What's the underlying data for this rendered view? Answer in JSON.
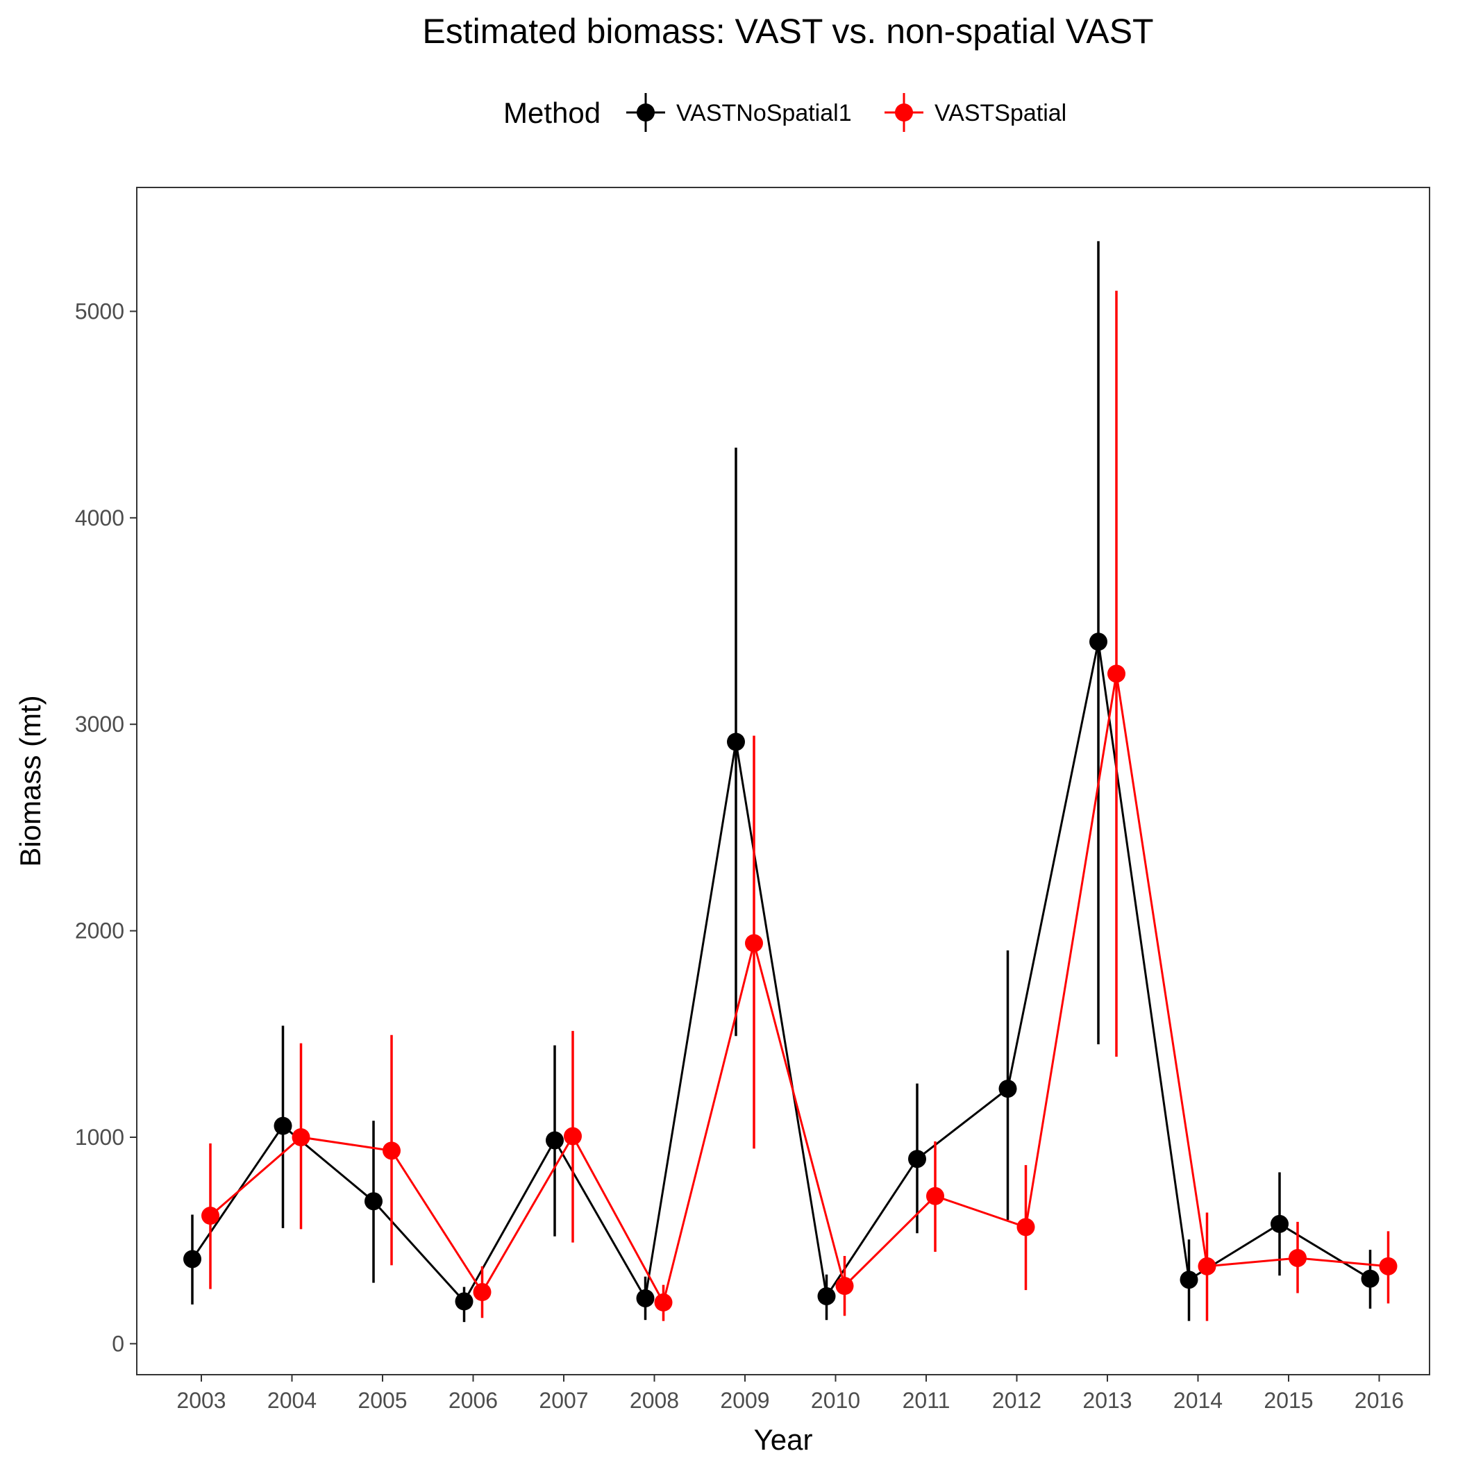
{
  "chart_data": {
    "type": "line",
    "title": "Estimated biomass: VAST vs. non-spatial VAST",
    "xlabel": "Year",
    "ylabel": "Biomass (mt)",
    "legend": {
      "title": "Method",
      "placement": "top"
    },
    "ylim": [
      -150,
      5600
    ],
    "yticks": [
      0,
      1000,
      2000,
      3000,
      4000,
      5000
    ],
    "categories": [
      "2003",
      "2004",
      "2005",
      "2006",
      "2007",
      "2008",
      "2009",
      "2010",
      "2011",
      "2012",
      "2013",
      "2014",
      "2015",
      "2016"
    ],
    "grid": false,
    "series": [
      {
        "name": "VASTNoSpatial1",
        "color": "#000000",
        "values": [
          410,
          1055,
          690,
          205,
          985,
          220,
          2915,
          230,
          895,
          1235,
          3400,
          310,
          580,
          315
        ],
        "lower": [
          190,
          560,
          295,
          105,
          520,
          115,
          1490,
          115,
          535,
          600,
          1450,
          110,
          330,
          170
        ],
        "upper": [
          625,
          1540,
          1080,
          275,
          1445,
          325,
          4340,
          335,
          1260,
          1905,
          5340,
          505,
          830,
          455
        ]
      },
      {
        "name": "VASTSpatial",
        "color": "#ff0000",
        "values": [
          620,
          1000,
          935,
          250,
          1005,
          200,
          1940,
          280,
          715,
          565,
          3245,
          375,
          415,
          375
        ],
        "lower": [
          265,
          555,
          380,
          125,
          490,
          110,
          945,
          135,
          445,
          260,
          1390,
          110,
          245,
          195
        ],
        "upper": [
          970,
          1455,
          1495,
          375,
          1515,
          285,
          2945,
          425,
          980,
          865,
          5100,
          635,
          590,
          545
        ]
      }
    ]
  }
}
